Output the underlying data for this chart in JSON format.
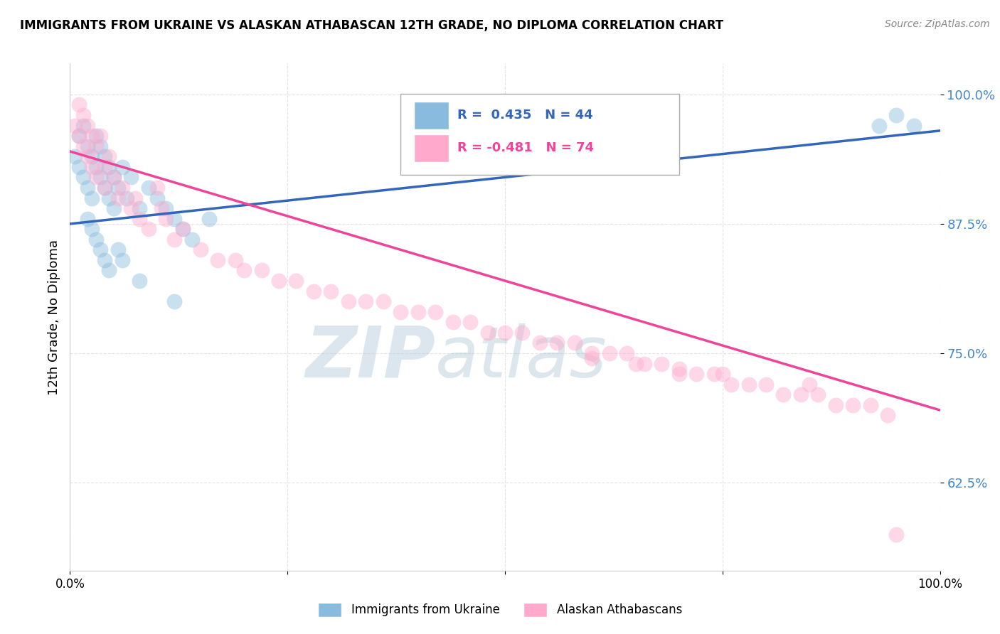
{
  "title": "IMMIGRANTS FROM UKRAINE VS ALASKAN ATHABASCAN 12TH GRADE, NO DIPLOMA CORRELATION CHART",
  "source_text": "Source: ZipAtlas.com",
  "ylabel": "12th Grade, No Diploma",
  "watermark_zip": "ZIP",
  "watermark_atlas": "atlas",
  "legend_blue_r": "0.435",
  "legend_blue_n": "44",
  "legend_pink_r": "-0.481",
  "legend_pink_n": "74",
  "blue_color": "#88bbdd",
  "pink_color": "#ffaacc",
  "blue_line_color": "#3366bb",
  "pink_line_color": "#ee4499",
  "xlim": [
    0.0,
    1.0
  ],
  "ylim": [
    0.54,
    1.03
  ],
  "yticks": [
    0.625,
    0.75,
    0.875,
    1.0
  ],
  "ytick_labels": [
    "62.5%",
    "75.0%",
    "87.5%",
    "100.0%"
  ],
  "blue_scatter_x": [
    0.005,
    0.01,
    0.01,
    0.015,
    0.015,
    0.02,
    0.02,
    0.025,
    0.025,
    0.03,
    0.03,
    0.035,
    0.035,
    0.04,
    0.04,
    0.045,
    0.045,
    0.05,
    0.05,
    0.055,
    0.06,
    0.065,
    0.07,
    0.08,
    0.09,
    0.1,
    0.11,
    0.12,
    0.13,
    0.14,
    0.16,
    0.02,
    0.025,
    0.03,
    0.035,
    0.04,
    0.045,
    0.055,
    0.06,
    0.08,
    0.12,
    0.93,
    0.95,
    0.97
  ],
  "blue_scatter_y": [
    0.94,
    0.96,
    0.93,
    0.97,
    0.92,
    0.95,
    0.91,
    0.94,
    0.9,
    0.96,
    0.93,
    0.95,
    0.92,
    0.94,
    0.91,
    0.93,
    0.9,
    0.92,
    0.89,
    0.91,
    0.93,
    0.9,
    0.92,
    0.89,
    0.91,
    0.9,
    0.89,
    0.88,
    0.87,
    0.86,
    0.88,
    0.88,
    0.87,
    0.86,
    0.85,
    0.84,
    0.83,
    0.85,
    0.84,
    0.82,
    0.8,
    0.97,
    0.98,
    0.97
  ],
  "pink_scatter_x": [
    0.005,
    0.01,
    0.01,
    0.015,
    0.015,
    0.02,
    0.02,
    0.025,
    0.025,
    0.03,
    0.03,
    0.035,
    0.04,
    0.04,
    0.045,
    0.05,
    0.055,
    0.06,
    0.07,
    0.075,
    0.08,
    0.09,
    0.1,
    0.105,
    0.11,
    0.12,
    0.13,
    0.15,
    0.17,
    0.19,
    0.2,
    0.22,
    0.24,
    0.26,
    0.28,
    0.3,
    0.32,
    0.34,
    0.36,
    0.38,
    0.4,
    0.42,
    0.44,
    0.46,
    0.48,
    0.5,
    0.52,
    0.54,
    0.56,
    0.58,
    0.6,
    0.62,
    0.64,
    0.66,
    0.68,
    0.7,
    0.72,
    0.74,
    0.76,
    0.78,
    0.8,
    0.82,
    0.84,
    0.86,
    0.88,
    0.9,
    0.92,
    0.94,
    0.6,
    0.65,
    0.7,
    0.75,
    0.85,
    0.95
  ],
  "pink_scatter_y": [
    0.97,
    0.99,
    0.96,
    0.98,
    0.95,
    0.97,
    0.94,
    0.96,
    0.93,
    0.95,
    0.92,
    0.96,
    0.93,
    0.91,
    0.94,
    0.92,
    0.9,
    0.91,
    0.89,
    0.9,
    0.88,
    0.87,
    0.91,
    0.89,
    0.88,
    0.86,
    0.87,
    0.85,
    0.84,
    0.84,
    0.83,
    0.83,
    0.82,
    0.82,
    0.81,
    0.81,
    0.8,
    0.8,
    0.8,
    0.79,
    0.79,
    0.79,
    0.78,
    0.78,
    0.77,
    0.77,
    0.77,
    0.76,
    0.76,
    0.76,
    0.75,
    0.75,
    0.75,
    0.74,
    0.74,
    0.73,
    0.73,
    0.73,
    0.72,
    0.72,
    0.72,
    0.71,
    0.71,
    0.71,
    0.7,
    0.7,
    0.7,
    0.69,
    0.745,
    0.74,
    0.735,
    0.73,
    0.72,
    0.575
  ],
  "blue_trend_x": [
    0.0,
    1.0
  ],
  "blue_trend_y": [
    0.875,
    0.965
  ],
  "pink_trend_x": [
    0.0,
    1.0
  ],
  "pink_trend_y": [
    0.945,
    0.695
  ]
}
